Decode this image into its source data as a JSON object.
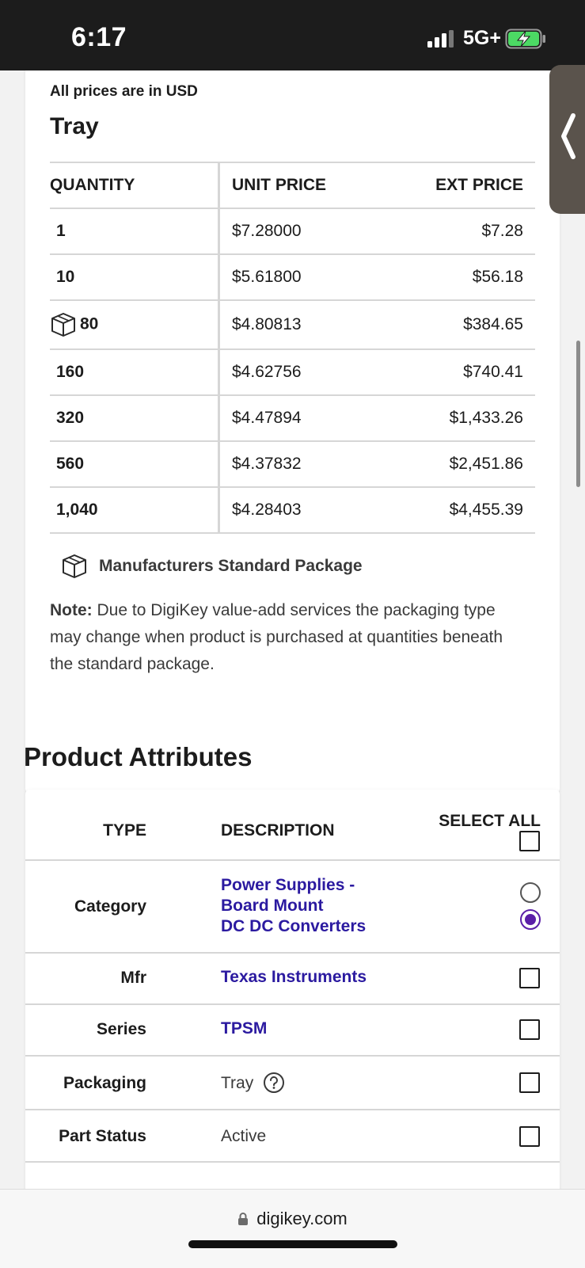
{
  "status_bar": {
    "time": "6:17",
    "network": "5G+"
  },
  "pricing": {
    "currency_note": "All prices are in USD",
    "package_type": "Tray",
    "headers": {
      "quantity": "QUANTITY",
      "unit_price": "UNIT PRICE",
      "ext_price": "EXT PRICE"
    },
    "rows": [
      {
        "qty": "1",
        "unit": "$7.28000",
        "ext": "$7.28"
      },
      {
        "qty": "10",
        "unit": "$5.61800",
        "ext": "$56.18"
      },
      {
        "qty": "80",
        "unit": "$4.80813",
        "ext": "$384.65",
        "standard_package": true
      },
      {
        "qty": "160",
        "unit": "$4.62756",
        "ext": "$740.41"
      },
      {
        "qty": "320",
        "unit": "$4.47894",
        "ext": "$1,433.26"
      },
      {
        "qty": "560",
        "unit": "$4.37832",
        "ext": "$2,451.86"
      },
      {
        "qty": "1,040",
        "unit": "$4.28403",
        "ext": "$4,455.39"
      }
    ],
    "standard_package_label": "Manufacturers Standard Package",
    "note_label": "Note:",
    "note_text": "Due to DigiKey value-add services the packaging type may change when product is purchased at quantities beneath the standard package."
  },
  "attributes": {
    "heading": "Product Attributes",
    "headers": {
      "type": "TYPE",
      "description": "DESCRIPTION",
      "select_all": "SELECT ALL"
    },
    "category": {
      "type": "Category",
      "lines": [
        "Power Supplies -",
        "Board Mount",
        "DC DC Converters"
      ]
    },
    "rows": [
      {
        "type": "Mfr",
        "value": "Texas Instruments"
      },
      {
        "type": "Series",
        "value": "TPSM"
      },
      {
        "type": "Packaging",
        "value": "Tray"
      },
      {
        "type": "Part Status",
        "value": "Active"
      }
    ]
  },
  "browser": {
    "url": "digikey.com"
  },
  "colors": {
    "link": "#2b1aa0",
    "radio_selected": "#5b1fa8",
    "battery": "#4cd964"
  }
}
